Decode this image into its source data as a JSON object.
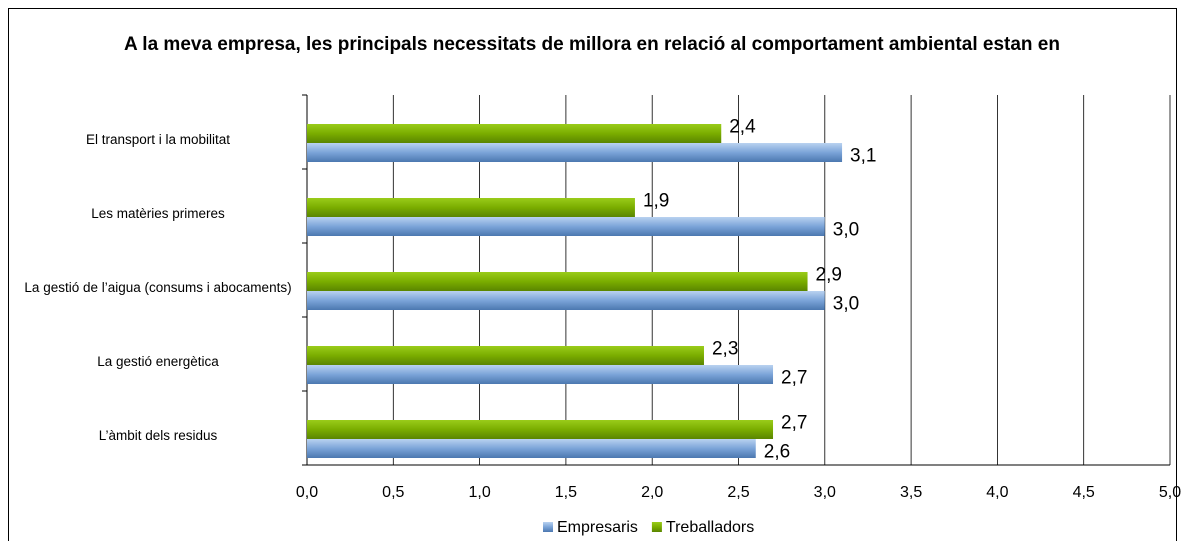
{
  "chart_data": {
    "type": "bar",
    "orientation": "horizontal",
    "title": "A la meva empresa, les principals necessitats de millora en relació al comportament ambiental estan en",
    "categories": [
      "El transport i la mobilitat",
      "Les matèries primeres",
      "La gestió de l’aigua (consums i abocaments)",
      "La gestió energètica",
      "L’àmbit dels residus"
    ],
    "series": [
      {
        "name": "Empresaris",
        "color": "#7ba4d8",
        "values": [
          3.1,
          3.0,
          3.0,
          2.7,
          2.6
        ],
        "value_labels": [
          "3,1",
          "3,0",
          "3,0",
          "2,7",
          "2,6"
        ]
      },
      {
        "name": "Treballadors",
        "color": "#7aad00",
        "values": [
          2.4,
          1.9,
          2.9,
          2.3,
          2.7
        ],
        "value_labels": [
          "2,4",
          "1,9",
          "2,9",
          "2,3",
          "2,7"
        ]
      }
    ],
    "xlim": [
      0,
      5
    ],
    "xticks": [
      {
        "value": 0,
        "label": "0,0"
      },
      {
        "value": 0.5,
        "label": "0,5"
      },
      {
        "value": 1,
        "label": "1,0"
      },
      {
        "value": 1.5,
        "label": "1,5"
      },
      {
        "value": 2,
        "label": "2,0"
      },
      {
        "value": 2.5,
        "label": "2,5"
      },
      {
        "value": 3,
        "label": "3,0"
      },
      {
        "value": 3.5,
        "label": "3,5"
      },
      {
        "value": 4,
        "label": "4,0"
      },
      {
        "value": 4.5,
        "label": "4,5"
      },
      {
        "value": 5,
        "label": "5,0"
      }
    ],
    "grid": true,
    "legend": "bottom"
  }
}
